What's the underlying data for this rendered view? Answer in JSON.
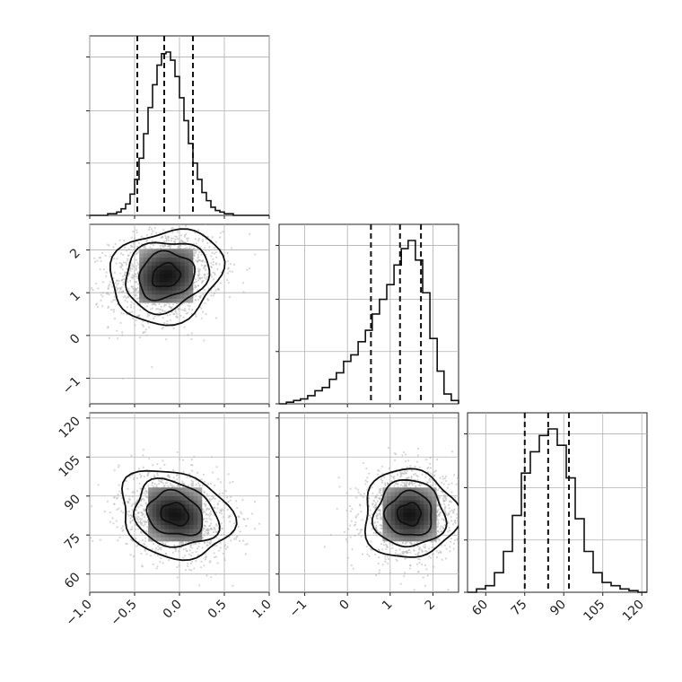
{
  "chart_data": {
    "type": "corner",
    "title": "",
    "grid": true,
    "parameters": [
      {
        "label": "",
        "median": -0.17,
        "quantiles": [
          -0.47,
          -0.17,
          0.15
        ],
        "sigma": 0.31,
        "range": [
          -1.0,
          1.0
        ],
        "ticks": [
          -1.0,
          -0.5,
          0.0,
          0.5,
          1.0
        ],
        "tick_labels": [
          "−1.0",
          "−0.5",
          "0.0",
          "0.5",
          "1.0"
        ],
        "hist": {
          "edges": [
            -1.0,
            -0.95,
            -0.9,
            -0.85,
            -0.8,
            -0.75,
            -0.7,
            -0.65,
            -0.6,
            -0.55,
            -0.5,
            -0.45,
            -0.4,
            -0.35,
            -0.3,
            -0.25,
            -0.2,
            -0.15,
            -0.1,
            -0.05,
            0.0,
            0.05,
            0.1,
            0.15,
            0.2,
            0.25,
            0.3,
            0.35,
            0.4,
            0.45,
            0.5,
            0.55,
            0.6,
            0.65,
            0.7,
            0.75,
            0.8,
            0.85,
            0.9,
            0.95,
            1.0
          ],
          "counts": [
            0,
            0,
            0,
            0,
            0.01,
            0.01,
            0.02,
            0.04,
            0.07,
            0.13,
            0.22,
            0.35,
            0.5,
            0.66,
            0.8,
            0.92,
            0.99,
            1.0,
            0.95,
            0.85,
            0.72,
            0.58,
            0.44,
            0.32,
            0.22,
            0.14,
            0.09,
            0.05,
            0.03,
            0.02,
            0.01,
            0.01,
            0,
            0,
            0,
            0,
            0,
            0,
            0,
            0
          ]
        }
      },
      {
        "label": "",
        "median": 1.23,
        "quantiles": [
          0.55,
          1.23,
          1.72
        ],
        "sigma": 0.55,
        "range": [
          -1.6,
          2.6
        ],
        "ticks": [
          -1,
          0,
          1,
          2
        ],
        "tick_labels": [
          "−1",
          "0",
          "1",
          "2"
        ],
        "hist": {
          "edges": [
            -1.6,
            -1.43,
            -1.26,
            -1.1,
            -0.93,
            -0.76,
            -0.59,
            -0.42,
            -0.26,
            -0.09,
            0.08,
            0.25,
            0.42,
            0.58,
            0.75,
            0.92,
            1.09,
            1.26,
            1.42,
            1.59,
            1.76,
            1.93,
            2.1,
            2.26,
            2.43,
            2.6
          ],
          "counts": [
            0,
            0.01,
            0.02,
            0.03,
            0.05,
            0.08,
            0.1,
            0.15,
            0.19,
            0.26,
            0.3,
            0.38,
            0.45,
            0.55,
            0.64,
            0.73,
            0.85,
            0.95,
            1.0,
            0.88,
            0.68,
            0.4,
            0.2,
            0.06,
            0.02
          ]
        }
      },
      {
        "label": "",
        "median": 84,
        "quantiles": [
          75,
          84,
          92
        ],
        "sigma": 8.5,
        "range": [
          53,
          122
        ],
        "ticks": [
          60,
          75,
          90,
          105,
          120
        ],
        "tick_labels": [
          "60",
          "75",
          "90",
          "105",
          "120"
        ],
        "hist": {
          "edges": [
            53,
            56.45,
            59.9,
            63.35,
            66.8,
            70.25,
            73.7,
            77.15,
            80.6,
            84.05,
            87.5,
            90.95,
            94.4,
            97.85,
            101.3,
            104.75,
            108.2,
            111.65,
            115.1,
            118.55,
            122
          ],
          "counts": [
            0,
            0.02,
            0.04,
            0.12,
            0.25,
            0.47,
            0.73,
            0.86,
            0.96,
            1.0,
            0.9,
            0.7,
            0.45,
            0.25,
            0.12,
            0.06,
            0.04,
            0.02,
            0.01,
            0
          ]
        }
      }
    ],
    "pairs": [
      {
        "x": 0,
        "y": 1,
        "center": [
          -0.15,
          1.4
        ],
        "rho": 0.15
      },
      {
        "x": 0,
        "y": 2,
        "center": [
          -0.05,
          83
        ],
        "rho": -0.2
      },
      {
        "x": 1,
        "y": 2,
        "center": [
          1.45,
          83
        ],
        "rho": 0.0
      }
    ]
  }
}
